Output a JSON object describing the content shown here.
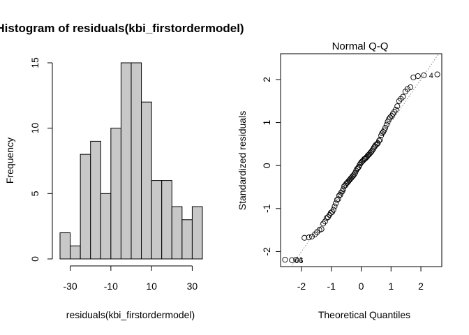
{
  "chart_data": [
    {
      "type": "bar",
      "title": "Histogram of residuals(kbi_firstordermodel)",
      "xlabel": "residuals(kbi_firstordermodel)",
      "ylabel": "Frequency",
      "bin_edges": [
        -35,
        -30,
        -25,
        -20,
        -15,
        -10,
        -5,
        0,
        5,
        10,
        15,
        20,
        25,
        30,
        35
      ],
      "values": [
        2,
        1,
        8,
        9,
        5,
        10,
        15,
        15,
        12,
        6,
        6,
        4,
        3,
        4
      ],
      "xticks": [
        -30,
        -10,
        10,
        30
      ],
      "yticks": [
        0,
        5,
        10,
        15
      ],
      "ylim": [
        0,
        15
      ],
      "bar_color": "#c8c8c8"
    },
    {
      "type": "scatter",
      "title": "Normal Q-Q",
      "xlabel": "Theoretical Quantiles",
      "ylabel": "Standardized residuals",
      "xticks": [
        -2,
        -1,
        0,
        1,
        2
      ],
      "yticks": [
        -2,
        -1,
        0,
        1,
        2
      ],
      "xlim": [
        -2.7,
        2.7
      ],
      "ylim": [
        -2.35,
        2.6
      ],
      "reference_line": {
        "slope": 1.0,
        "intercept": 0.0
      },
      "annotations": [
        {
          "text": "66",
          "x": -2.32,
          "y": -2.2
        },
        {
          "text": "1",
          "x": -2.18,
          "y": -2.19
        },
        {
          "text": "4",
          "x": 2.18,
          "y": 2.1
        }
      ],
      "points": [
        [
          -2.55,
          -2.19
        ],
        [
          -2.32,
          -2.2
        ],
        [
          -2.18,
          -2.19
        ],
        [
          -1.9,
          -1.68
        ],
        [
          -1.75,
          -1.67
        ],
        [
          -1.65,
          -1.65
        ],
        [
          -1.55,
          -1.6
        ],
        [
          -1.48,
          -1.55
        ],
        [
          -1.4,
          -1.5
        ],
        [
          -1.33,
          -1.48
        ],
        [
          -1.27,
          -1.35
        ],
        [
          -1.21,
          -1.3
        ],
        [
          -1.16,
          -1.22
        ],
        [
          -1.11,
          -1.2
        ],
        [
          -1.06,
          -1.15
        ],
        [
          -1.02,
          -1.1
        ],
        [
          -0.97,
          -1.08
        ],
        [
          -0.93,
          -1.03
        ],
        [
          -0.89,
          -0.95
        ],
        [
          -0.85,
          -0.88
        ],
        [
          -0.81,
          -0.8
        ],
        [
          -0.77,
          -0.78
        ],
        [
          -0.74,
          -0.7
        ],
        [
          -0.7,
          -0.68
        ],
        [
          -0.67,
          -0.63
        ],
        [
          -0.63,
          -0.6
        ],
        [
          -0.6,
          -0.55
        ],
        [
          -0.57,
          -0.48
        ],
        [
          -0.53,
          -0.46
        ],
        [
          -0.5,
          -0.42
        ],
        [
          -0.47,
          -0.4
        ],
        [
          -0.44,
          -0.38
        ],
        [
          -0.41,
          -0.35
        ],
        [
          -0.38,
          -0.33
        ],
        [
          -0.35,
          -0.3
        ],
        [
          -0.32,
          -0.28
        ],
        [
          -0.29,
          -0.25
        ],
        [
          -0.26,
          -0.23
        ],
        [
          -0.23,
          -0.2
        ],
        [
          -0.2,
          -0.17
        ],
        [
          -0.17,
          -0.12
        ],
        [
          -0.14,
          -0.08
        ],
        [
          -0.11,
          -0.06
        ],
        [
          -0.08,
          -0.03
        ],
        [
          -0.05,
          0.02
        ],
        [
          -0.02,
          0.05
        ],
        [
          0.01,
          0.08
        ],
        [
          0.04,
          0.1
        ],
        [
          0.07,
          0.12
        ],
        [
          0.1,
          0.15
        ],
        [
          0.13,
          0.16
        ],
        [
          0.16,
          0.18
        ],
        [
          0.19,
          0.2
        ],
        [
          0.22,
          0.23
        ],
        [
          0.25,
          0.25
        ],
        [
          0.28,
          0.27
        ],
        [
          0.31,
          0.3
        ],
        [
          0.34,
          0.32
        ],
        [
          0.37,
          0.35
        ],
        [
          0.4,
          0.38
        ],
        [
          0.43,
          0.42
        ],
        [
          0.46,
          0.45
        ],
        [
          0.49,
          0.48
        ],
        [
          0.53,
          0.5
        ],
        [
          0.56,
          0.52
        ],
        [
          0.6,
          0.58
        ],
        [
          0.63,
          0.6
        ],
        [
          0.67,
          0.7
        ],
        [
          0.7,
          0.75
        ],
        [
          0.74,
          0.78
        ],
        [
          0.77,
          0.82
        ],
        [
          0.81,
          0.88
        ],
        [
          0.85,
          0.95
        ],
        [
          0.89,
          1.02
        ],
        [
          0.93,
          1.08
        ],
        [
          0.97,
          1.12
        ],
        [
          1.02,
          1.15
        ],
        [
          1.06,
          1.2
        ],
        [
          1.11,
          1.25
        ],
        [
          1.16,
          1.3
        ],
        [
          1.21,
          1.38
        ],
        [
          1.27,
          1.5
        ],
        [
          1.33,
          1.55
        ],
        [
          1.4,
          1.6
        ],
        [
          1.48,
          1.72
        ],
        [
          1.55,
          1.78
        ],
        [
          1.65,
          1.82
        ],
        [
          1.75,
          2.05
        ],
        [
          1.9,
          2.08
        ],
        [
          2.1,
          2.1
        ],
        [
          2.55,
          2.12
        ]
      ]
    }
  ]
}
